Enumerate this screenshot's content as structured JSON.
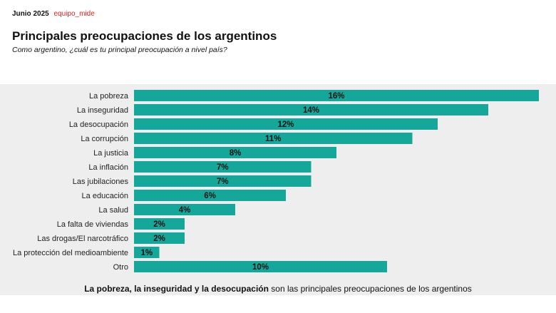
{
  "header": {
    "date": "Junio 2025",
    "brand": "equipo_mide"
  },
  "chart_data": {
    "type": "bar",
    "orientation": "horizontal",
    "title": "Principales preocupaciones de los argentinos",
    "subtitle": "Como argentino, ¿cuál es tu principal preocupación a nivel país?",
    "categories": [
      "La pobreza",
      "La inseguridad",
      "La desocupación",
      "La corrupción",
      "La justicia",
      "La inflación",
      "Las jubilaciones",
      "La educación",
      "La salud",
      "La falta de viviendas",
      "Las drogas/El narcotráfico",
      "La protección del medioambiente",
      "Otro"
    ],
    "values": [
      16,
      14,
      12,
      11,
      8,
      7,
      7,
      6,
      4,
      2,
      2,
      1,
      10
    ],
    "value_labels": [
      "16%",
      "14%",
      "12%",
      "11%",
      "8%",
      "7%",
      "7%",
      "6%",
      "4%",
      "2%",
      "2%",
      "1%",
      "10%"
    ],
    "unit": "%",
    "xlim": [
      0,
      16
    ],
    "bar_color": "#14a79a",
    "grid": false,
    "legend": "none"
  },
  "footer": {
    "bold": "La pobreza, la inseguridad y la desocupación",
    "rest": " son las principales preocupaciones de los argentinos"
  }
}
